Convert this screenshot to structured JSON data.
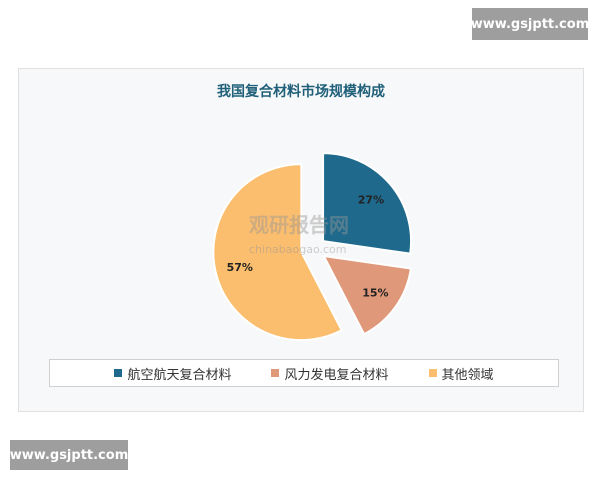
{
  "watermark_top": "www.gsjptt.com",
  "watermark_bottom": "www.gsjptt.com",
  "logo_text": "观研报告网 chinabaogao.com",
  "chart_data": {
    "type": "pie",
    "title": "我国复合材料市场规模构成",
    "categories": [
      "航空航天复合材料",
      "风力发电复合材料",
      "其他领域"
    ],
    "values": [
      27,
      15,
      57
    ],
    "labels": [
      "27%",
      "15%",
      "57%"
    ],
    "colors": [
      "#1f6a8c",
      "#e0987a",
      "#fbbd6e"
    ],
    "exploded": true,
    "legend": "bottom"
  }
}
